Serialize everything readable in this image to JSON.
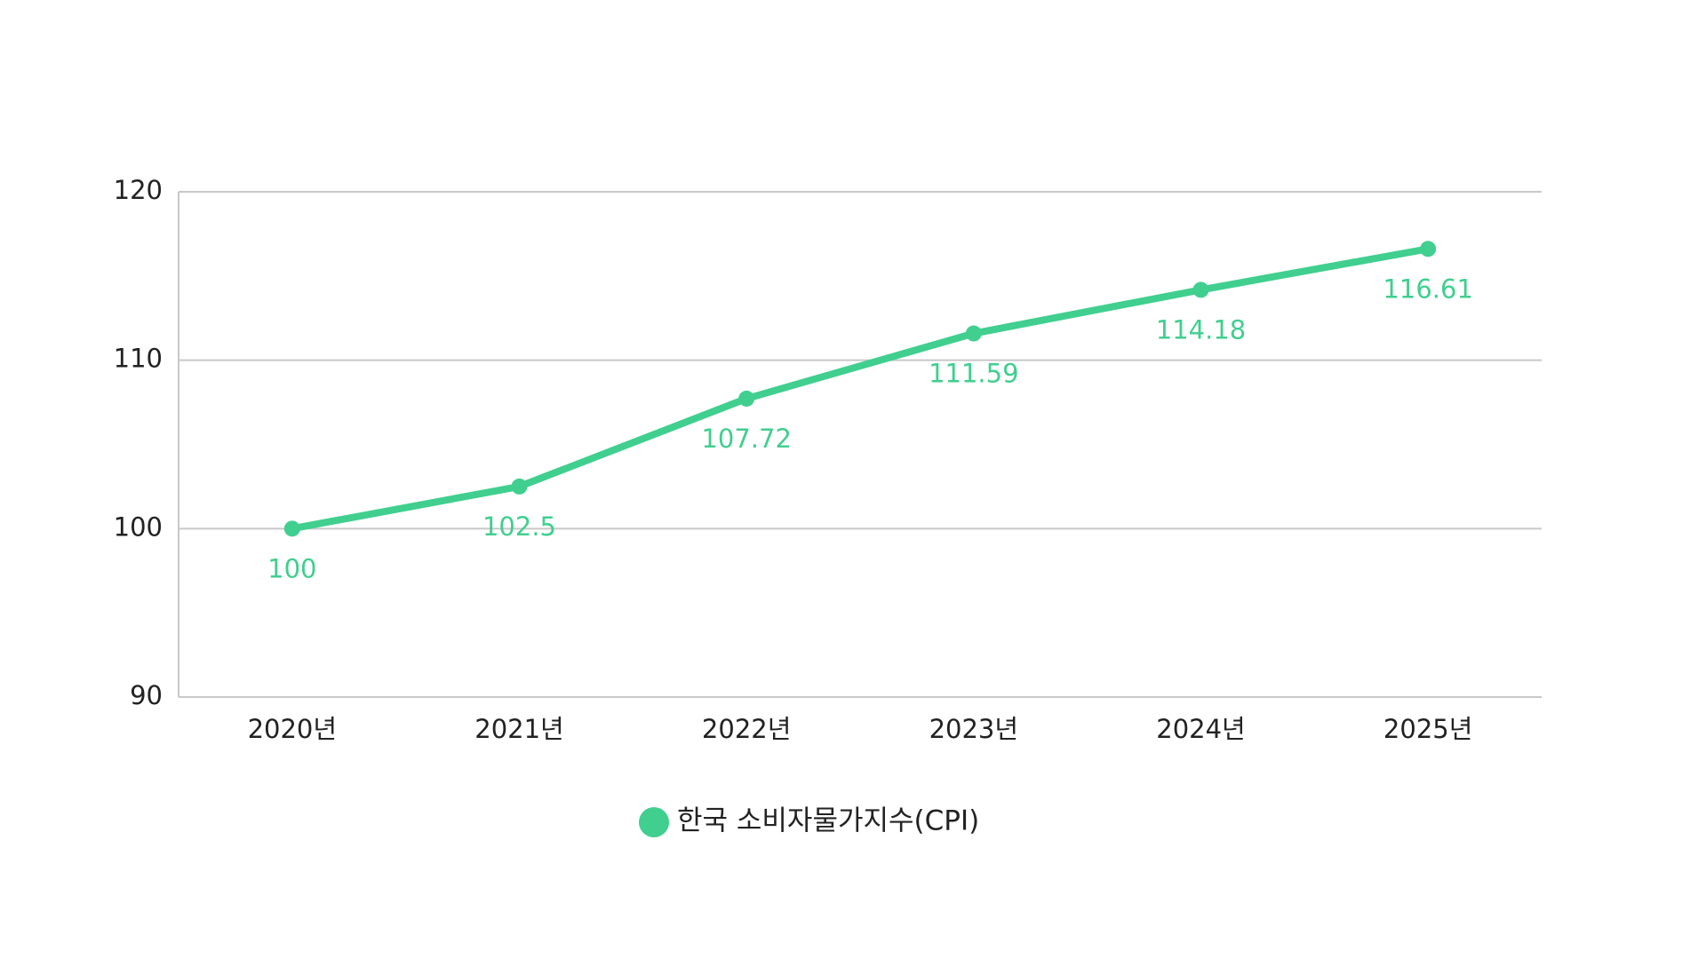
{
  "chart_data": {
    "type": "line",
    "categories": [
      "2020년",
      "2021년",
      "2022년",
      "2023년",
      "2024년",
      "2025년"
    ],
    "series": [
      {
        "name": "한국 소비자물가지수(CPI)",
        "color": "#40cf8f",
        "values": [
          100,
          102.5,
          107.72,
          111.59,
          114.18,
          116.61
        ]
      }
    ],
    "ylim": [
      90,
      120
    ],
    "yticks": [
      90,
      100,
      110,
      120
    ],
    "grid": true,
    "legend": "bottom"
  }
}
